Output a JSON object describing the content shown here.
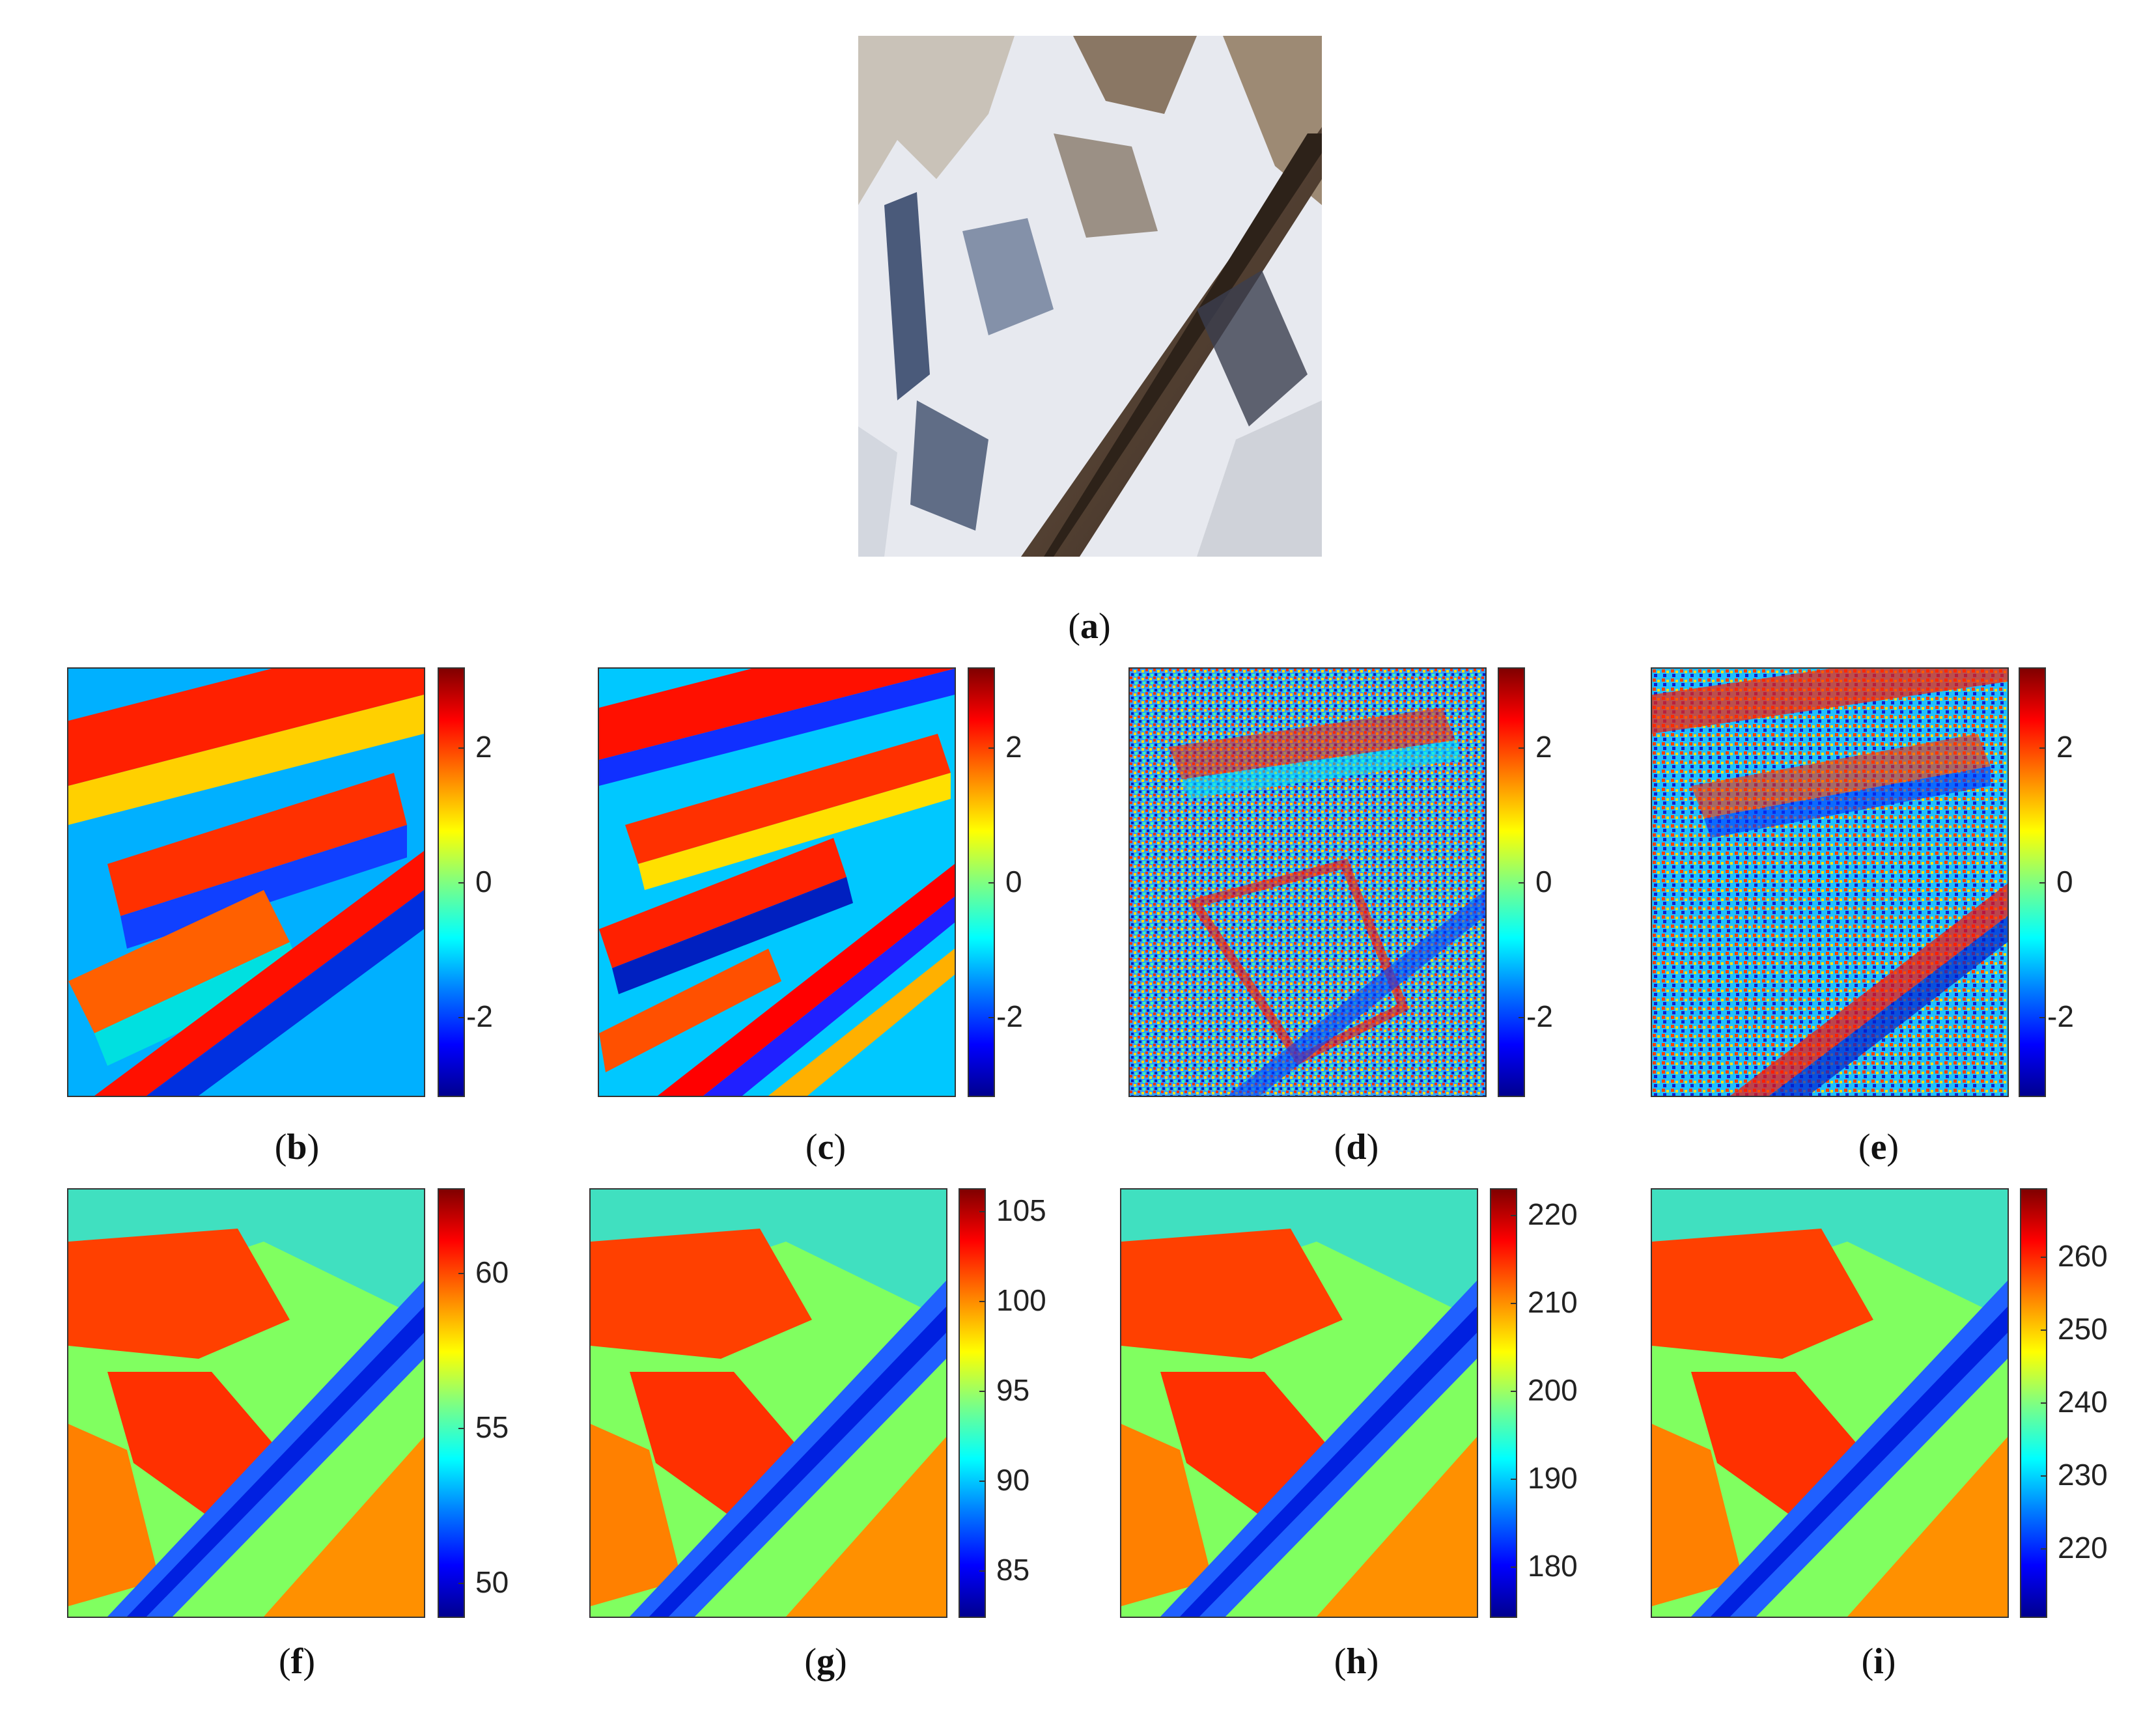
{
  "figure": {
    "panel_a": {
      "label": "a"
    },
    "phase_panels": [
      {
        "label": "b",
        "ticks": [
          "2",
          "0",
          "-2"
        ]
      },
      {
        "label": "c",
        "ticks": [
          "2",
          "0",
          "-2"
        ]
      },
      {
        "label": "d",
        "ticks": [
          "2",
          "0",
          "-2"
        ]
      },
      {
        "label": "e",
        "ticks": [
          "2",
          "0",
          "-2"
        ]
      }
    ],
    "height_panels": [
      {
        "label": "f",
        "ticks": [
          "60",
          "55",
          "50"
        ]
      },
      {
        "label": "g",
        "ticks": [
          "105",
          "100",
          "95",
          "90",
          "85"
        ]
      },
      {
        "label": "h",
        "ticks": [
          "220",
          "210",
          "200",
          "190",
          "180"
        ]
      },
      {
        "label": "i",
        "ticks": [
          "260",
          "250",
          "240",
          "230",
          "220"
        ]
      }
    ],
    "colors": {
      "colormap": "jet",
      "low": "#00008f",
      "high": "#800000"
    }
  }
}
